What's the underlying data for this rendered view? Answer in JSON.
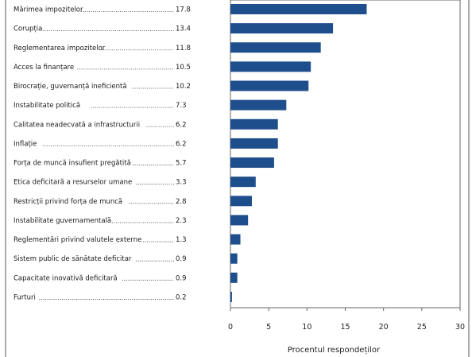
{
  "chart_data": {
    "type": "bar",
    "orientation": "horizontal",
    "categories": [
      "Mărimea impozitelor",
      "Corupția",
      "Reglementarea impozitelor",
      "Acces la finanțare",
      "Birocrație, guvernanță ineficientă",
      "Instabilitate politică",
      "Calitatea neadecvată a infrastructurii",
      "Inflație",
      "Forța de muncă insufient pregătită",
      "Etica deficitară a resurselor umane",
      "Restricții privind forța de muncă",
      "Instabilitate guvernamentală",
      "Reglementări privind valutele externe",
      "Sistem public de sănătate deficitar",
      "Capacitate inovativă deficitară",
      "Furturi"
    ],
    "values": [
      17.8,
      13.4,
      11.8,
      10.5,
      10.2,
      7.3,
      6.2,
      6.2,
      5.7,
      3.3,
      2.8,
      2.3,
      1.3,
      0.9,
      0.9,
      0.2
    ],
    "value_labels": [
      "17.8",
      "13.4",
      "11.8",
      "10.5",
      "10.2",
      "7.3",
      "6.2",
      "6.2",
      "5.7",
      "3.3",
      "2.8",
      "2.3",
      "1.3",
      "0.9",
      "0.9",
      "0.2"
    ],
    "xlabel": "Procentul respondeților",
    "xlim": [
      0,
      30
    ],
    "xticks": [
      "0",
      "5",
      "10",
      "15",
      "20",
      "25",
      "30"
    ],
    "bar_color": "#1f4e8c",
    "frame_color": "#555555",
    "grid": false
  }
}
